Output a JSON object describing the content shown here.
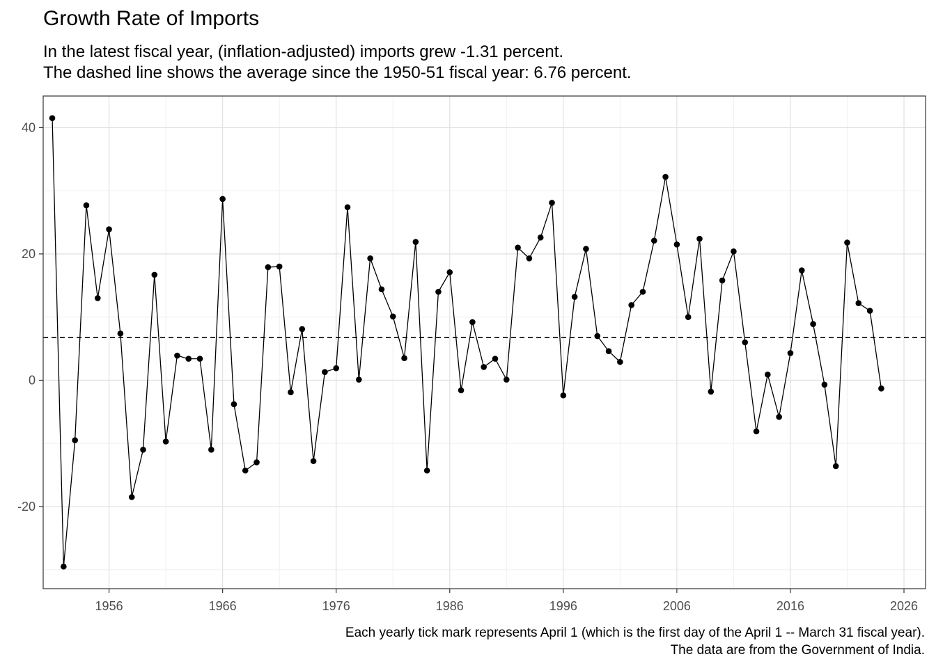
{
  "chart_data": {
    "type": "line",
    "title": "Growth Rate of Imports",
    "subtitle_lines": [
      "In the latest fiscal year, (inflation-adjusted) imports grew -1.31 percent.",
      "The dashed line shows the average since the 1950-51 fiscal year: 6.76 percent."
    ],
    "caption_lines": [
      "Each yearly tick mark represents April 1 (which is the first day of the April 1 -- March 31 fiscal year).",
      "The data are from the Government of India."
    ],
    "xlabel": "",
    "ylabel": "",
    "x_ticks": [
      1956,
      1966,
      1976,
      1986,
      1996,
      2006,
      2016,
      2026
    ],
    "x_tick_labels": [
      "1956",
      "1966",
      "1976",
      "1986",
      "1996",
      "2006",
      "2016",
      "2026"
    ],
    "y_ticks": [
      -20,
      0,
      20,
      40
    ],
    "y_tick_labels": [
      "-20",
      "0",
      "20",
      "40"
    ],
    "xlim": [
      1950.2,
      2027.9
    ],
    "ylim": [
      -33,
      45
    ],
    "grid": true,
    "average_line": 6.76,
    "x": [
      1951,
      1952,
      1953,
      1954,
      1955,
      1956,
      1957,
      1958,
      1959,
      1960,
      1961,
      1962,
      1963,
      1964,
      1965,
      1966,
      1967,
      1968,
      1969,
      1970,
      1971,
      1972,
      1973,
      1974,
      1975,
      1976,
      1977,
      1978,
      1979,
      1980,
      1981,
      1982,
      1983,
      1984,
      1985,
      1986,
      1987,
      1988,
      1989,
      1990,
      1991,
      1992,
      1993,
      1994,
      1995,
      1996,
      1997,
      1998,
      1999,
      2000,
      2001,
      2002,
      2003,
      2004,
      2005,
      2006,
      2007,
      2008,
      2009,
      2010,
      2011,
      2012,
      2013,
      2014,
      2015,
      2016,
      2017,
      2018,
      2019,
      2020,
      2021,
      2022,
      2023,
      2024
    ],
    "values": [
      41.5,
      -29.5,
      -9.5,
      27.7,
      13.0,
      23.9,
      7.4,
      -18.5,
      -11.0,
      16.7,
      -9.7,
      3.9,
      3.4,
      3.4,
      -11.0,
      28.7,
      -3.8,
      -14.3,
      -13.0,
      17.9,
      18.0,
      -1.9,
      8.1,
      -12.8,
      1.3,
      1.9,
      27.4,
      0.1,
      19.3,
      14.4,
      10.1,
      3.5,
      21.9,
      -14.3,
      14.0,
      17.1,
      -1.6,
      9.2,
      2.1,
      3.4,
      0.1,
      21.0,
      19.3,
      22.6,
      28.1,
      -2.4,
      13.2,
      20.8,
      7.0,
      4.6,
      2.9,
      11.9,
      14.0,
      22.1,
      32.2,
      21.5,
      10.0,
      22.4,
      -1.8,
      15.8,
      20.4,
      6.0,
      -8.1,
      0.9,
      -5.8,
      4.3,
      17.4,
      8.9,
      -0.7,
      -13.6,
      21.8,
      12.2,
      11.0,
      -1.31
    ]
  }
}
